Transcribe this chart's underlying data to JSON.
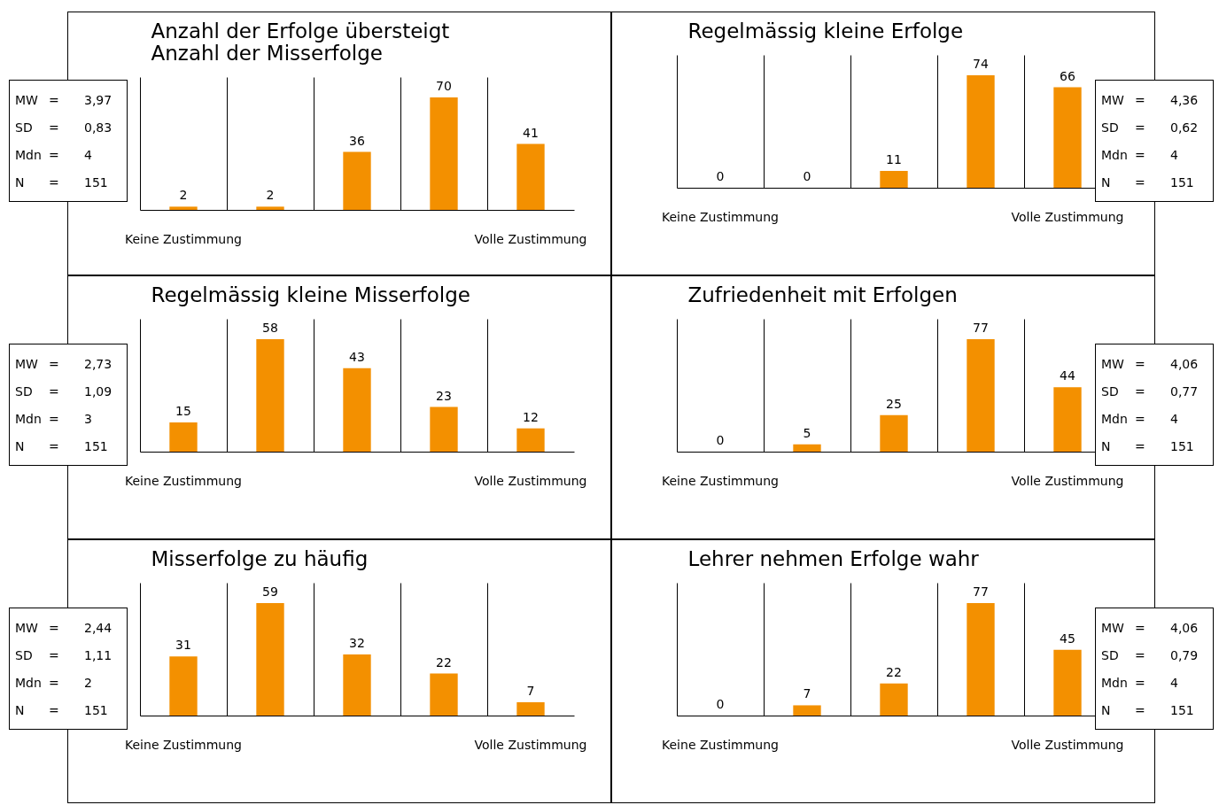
{
  "chart_data": [
    {
      "type": "bar",
      "title": "Anzahl der Erfolge übersteigt\nAnzahl der Misserfolge",
      "categories": [
        "Keine Zustimmung",
        null,
        null,
        null,
        "Volle Zustimmung"
      ],
      "values": [
        2,
        2,
        36,
        70,
        41
      ],
      "color": "#f39000",
      "data_labels": true,
      "grid": "x",
      "tick_labels": "x",
      "annotations": [
        "MW = 3,97",
        "SD = 0,83",
        "Mdn = 4",
        "N = 151"
      ]
    },
    {
      "type": "bar",
      "title": "Regelmässig kleine Erfolge",
      "categories": [
        "Keine Zustimmung",
        null,
        null,
        null,
        "Volle Zustimmung"
      ],
      "values": [
        0,
        0,
        11,
        74,
        66
      ],
      "color": "#f39000",
      "data_labels": true,
      "grid": "x",
      "tick_labels": "x",
      "annotations": [
        "MW = 4,36",
        "SD = 0,62",
        "Mdn = 4",
        "N = 151"
      ]
    },
    {
      "type": "bar",
      "title": "Regelmässig kleine Misserfolge",
      "categories": [
        "Keine Zustimmung",
        null,
        null,
        null,
        "Volle Zustimmung"
      ],
      "values": [
        15,
        58,
        43,
        23,
        12
      ],
      "color": "#f39000",
      "data_labels": true,
      "grid": "x",
      "tick_labels": "x",
      "annotations": [
        "MW = 2,73",
        "SD = 1,09",
        "Mdn = 3",
        "N = 151"
      ]
    },
    {
      "type": "bar",
      "title": "Zufriedenheit mit Erfolgen",
      "categories": [
        "Keine Zustimmung",
        null,
        null,
        null,
        "Volle Zustimmung"
      ],
      "values": [
        0,
        5,
        25,
        77,
        44
      ],
      "color": "#f39000",
      "data_labels": true,
      "grid": "x",
      "tick_labels": "x",
      "annotations": [
        "MW = 4,06",
        "SD = 0,77",
        "Mdn = 4",
        "N = 151"
      ]
    },
    {
      "type": "bar",
      "title": "Misserfolge zu häufig",
      "categories": [
        "Keine Zustimmung",
        null,
        null,
        null,
        "Volle Zustimmung"
      ],
      "values": [
        31,
        59,
        32,
        22,
        7
      ],
      "color": "#f39000",
      "data_labels": true,
      "grid": "x",
      "tick_labels": "x",
      "annotations": [
        "MW = 2,44",
        "SD = 1,11",
        "Mdn = 2",
        "N = 151"
      ]
    },
    {
      "type": "bar",
      "title": "Lehrer nehmen Erfolge wahr",
      "categories": [
        "Keine Zustimmung",
        null,
        null,
        null,
        "Volle Zustimmung"
      ],
      "values": [
        0,
        7,
        22,
        77,
        45
      ],
      "color": "#f39000",
      "data_labels": true,
      "grid": "x",
      "tick_labels": "x",
      "annotations": [
        "MW = 4,06",
        "SD = 0,79",
        "Mdn = 4",
        "N = 151"
      ]
    }
  ]
}
